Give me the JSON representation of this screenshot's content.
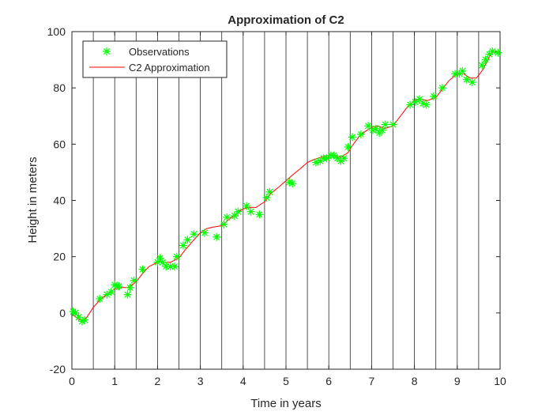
{
  "chart_data": {
    "type": "scatter",
    "title": "Approximation of C2",
    "xlabel": "Time in years",
    "ylabel": "Height in meters",
    "xlim": [
      0,
      10
    ],
    "ylim": [
      -20,
      100
    ],
    "xticks": [
      0,
      1,
      2,
      3,
      4,
      5,
      6,
      7,
      8,
      9,
      10
    ],
    "yticks": [
      -20,
      0,
      20,
      40,
      60,
      80,
      100
    ],
    "vertical_lines": [
      0.5,
      1,
      1.5,
      2,
      2.5,
      3,
      3.5,
      4,
      4.5,
      5,
      5.5,
      6,
      6.5,
      7,
      7.5,
      8,
      8.5,
      9,
      9.5
    ],
    "grid": false,
    "legend_position": "top-left",
    "colors": {
      "observations": "#00ff00",
      "approximation": "#ff0000",
      "axes": "#262626"
    },
    "series": [
      {
        "name": "Observations",
        "marker": "asterisk",
        "x": [
          0.03,
          0.08,
          0.16,
          0.24,
          0.3,
          0.65,
          0.82,
          0.92,
          1.0,
          1.05,
          1.1,
          1.3,
          1.36,
          1.45,
          1.65,
          2.0,
          2.06,
          2.12,
          2.2,
          2.3,
          2.4,
          2.45,
          2.6,
          2.7,
          2.85,
          3.1,
          3.38,
          3.55,
          3.62,
          3.8,
          3.88,
          4.08,
          4.18,
          4.38,
          4.55,
          4.62,
          5.08,
          5.15,
          5.7,
          5.8,
          5.88,
          5.95,
          6.05,
          6.12,
          6.2,
          6.28,
          6.35,
          6.45,
          6.55,
          6.75,
          6.92,
          7.03,
          7.1,
          7.18,
          7.25,
          7.32,
          7.5,
          7.9,
          8.02,
          8.12,
          8.2,
          8.28,
          8.45,
          8.65,
          8.95,
          9.05,
          9.12,
          9.22,
          9.35,
          9.58,
          9.66,
          9.75,
          9.82,
          9.95
        ],
        "y": [
          0.5,
          0,
          -1.5,
          -3,
          -2.5,
          5,
          6.5,
          7.5,
          10,
          9.5,
          9.5,
          6.5,
          9,
          11.5,
          15.5,
          18,
          19.5,
          18,
          16.5,
          16.5,
          16.5,
          20,
          24,
          26,
          28,
          28.5,
          27,
          31.5,
          34,
          34.5,
          36,
          38,
          36,
          35,
          41,
          43,
          46.5,
          46,
          53.5,
          54,
          55,
          55,
          56,
          56,
          55,
          54,
          55,
          59,
          62.5,
          63.5,
          66.5,
          65,
          65.5,
          64,
          65,
          67,
          67,
          74,
          75,
          76,
          74.5,
          74,
          77,
          80,
          85,
          85,
          86,
          83,
          82,
          88,
          90,
          92,
          93,
          92.5
        ]
      },
      {
        "name": "C2 Approximation",
        "style": "line",
        "x": [
          0,
          0.1,
          0.18,
          0.25,
          0.35,
          0.5,
          0.65,
          0.8,
          1.0,
          1.15,
          1.3,
          1.5,
          1.65,
          1.8,
          2.0,
          2.15,
          2.3,
          2.5,
          2.65,
          2.85,
          3.0,
          3.15,
          3.3,
          3.5,
          3.65,
          3.85,
          4.0,
          4.15,
          4.3,
          4.5,
          4.65,
          4.85,
          5.0,
          5.15,
          5.35,
          5.5,
          5.65,
          5.85,
          6.0,
          6.1,
          6.2,
          6.3,
          6.45,
          6.55,
          6.7,
          6.85,
          7.0,
          7.15,
          7.3,
          7.5,
          7.65,
          7.85,
          8.0,
          8.15,
          8.3,
          8.5,
          8.65,
          8.8,
          9.0,
          9.15,
          9.3,
          9.45,
          9.6,
          9.75,
          9.85,
          9.95
        ],
        "y": [
          -0.5,
          -1.5,
          -2.5,
          -2.7,
          -1.5,
          2,
          4.5,
          6.5,
          8.5,
          9,
          9,
          11,
          14,
          16.5,
          18,
          18,
          18,
          19.5,
          22.5,
          26,
          28.5,
          30,
          30.5,
          31,
          33,
          35.5,
          37,
          37.5,
          37.5,
          39.5,
          42.5,
          45,
          47,
          49,
          51.5,
          53.5,
          54.5,
          55.5,
          56,
          56,
          55.5,
          55.5,
          57,
          59.5,
          62.5,
          64.5,
          66,
          66.5,
          65.5,
          66.5,
          69.5,
          73.5,
          75.5,
          76,
          75.5,
          76.5,
          79.5,
          82.5,
          85,
          85,
          83.5,
          83.5,
          86.5,
          91,
          93,
          92.5
        ]
      }
    ]
  }
}
